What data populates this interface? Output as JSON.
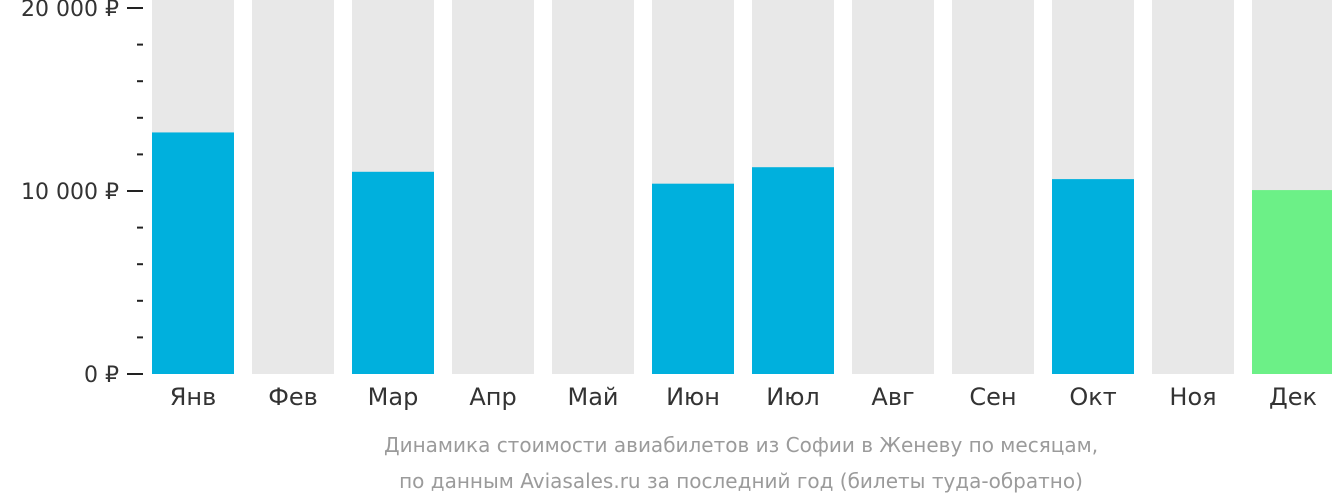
{
  "chart_data": {
    "type": "bar",
    "categories": [
      "Янв",
      "Фев",
      "Мар",
      "Апр",
      "Май",
      "Июн",
      "Июл",
      "Авг",
      "Сен",
      "Окт",
      "Ноя",
      "Дек"
    ],
    "values": [
      13200,
      null,
      11050,
      null,
      null,
      10400,
      11300,
      null,
      null,
      10650,
      null,
      10050
    ],
    "highlight_index": 11,
    "ylim": [
      0,
      20000
    ],
    "yticks": [
      {
        "value": 0,
        "label": "0 ₽"
      },
      {
        "value": 10000,
        "label": "10 000 ₽"
      },
      {
        "value": 20000,
        "label": "20 000 ₽"
      }
    ],
    "minor_tick_step": 2000,
    "caption_lines": [
      "Динамика стоимости авиабилетов из Софии в Женеву по месяцам,",
      "по данным Aviasales.ru за последний год (билеты туда-обратно)"
    ],
    "colors": {
      "bar": "#00b0dd",
      "highlight": "#6cf087",
      "background_bar": "#e8e8e8",
      "axis": "#222222",
      "text": "#333333",
      "caption": "#9b9b9b"
    }
  }
}
